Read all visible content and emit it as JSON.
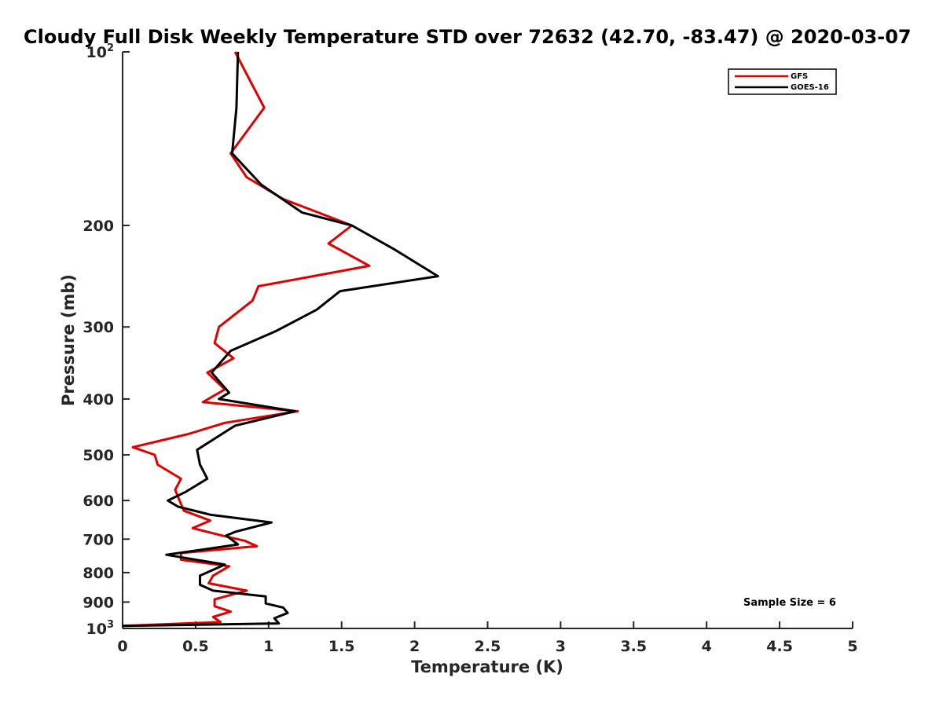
{
  "chart_data": {
    "type": "line",
    "title": "Cloudy Full Disk Weekly Temperature STD over 72632 (42.70, -83.47) @ 2020-03-07",
    "xlabel": "Temperature (K)",
    "ylabel": "Pressure (mb)",
    "xlim": [
      0,
      5
    ],
    "ylim": [
      100,
      1000
    ],
    "y_scale": "log",
    "y_reversed": true,
    "x_ticks": [
      "0",
      "0.5",
      "1",
      "1.5",
      "2",
      "2.5",
      "3",
      "3.5",
      "4",
      "4.5",
      "5"
    ],
    "y_ticks": [
      {
        "value": 100,
        "base": "10",
        "exp": "2"
      },
      {
        "value": 200,
        "label": "200"
      },
      {
        "value": 300,
        "label": "300"
      },
      {
        "value": 400,
        "label": "400"
      },
      {
        "value": 500,
        "label": "500"
      },
      {
        "value": 600,
        "label": "600"
      },
      {
        "value": 700,
        "label": "700"
      },
      {
        "value": 800,
        "label": "800"
      },
      {
        "value": 900,
        "label": "900"
      },
      {
        "value": 1000,
        "base": "10",
        "exp": "3"
      }
    ],
    "grid": false,
    "legend_position": "top-right",
    "annotation": "Sample Size = 6",
    "series": [
      {
        "name": "GFS",
        "color": "#e00000",
        "points": [
          [
            0.77,
            100
          ],
          [
            0.97,
            125
          ],
          [
            0.74,
            150
          ],
          [
            0.85,
            165
          ],
          [
            1.1,
            180
          ],
          [
            1.57,
            200
          ],
          [
            1.41,
            215
          ],
          [
            1.69,
            235
          ],
          [
            0.93,
            255
          ],
          [
            0.89,
            270
          ],
          [
            0.66,
            300
          ],
          [
            0.63,
            320
          ],
          [
            0.76,
            340
          ],
          [
            0.58,
            360
          ],
          [
            0.7,
            385
          ],
          [
            0.55,
            405
          ],
          [
            1.2,
            420
          ],
          [
            0.7,
            440
          ],
          [
            0.45,
            460
          ],
          [
            0.07,
            485
          ],
          [
            0.22,
            500
          ],
          [
            0.24,
            520
          ],
          [
            0.4,
            550
          ],
          [
            0.36,
            575
          ],
          [
            0.39,
            600
          ],
          [
            0.42,
            625
          ],
          [
            0.6,
            650
          ],
          [
            0.48,
            670
          ],
          [
            0.68,
            690
          ],
          [
            0.84,
            705
          ],
          [
            0.92,
            720
          ],
          [
            0.4,
            740
          ],
          [
            0.4,
            760
          ],
          [
            0.73,
            780
          ],
          [
            0.62,
            810
          ],
          [
            0.59,
            835
          ],
          [
            0.85,
            860
          ],
          [
            0.63,
            890
          ],
          [
            0.63,
            915
          ],
          [
            0.74,
            935
          ],
          [
            0.62,
            955
          ],
          [
            0.67,
            975
          ],
          [
            0.0,
            990
          ]
        ]
      },
      {
        "name": "GOES-16",
        "color": "#000000",
        "points": [
          [
            0.79,
            100
          ],
          [
            0.78,
            125
          ],
          [
            0.75,
            150
          ],
          [
            0.95,
            170
          ],
          [
            1.23,
            190
          ],
          [
            1.57,
            200
          ],
          [
            1.86,
            220
          ],
          [
            2.16,
            245
          ],
          [
            1.49,
            260
          ],
          [
            1.33,
            280
          ],
          [
            1.05,
            305
          ],
          [
            0.74,
            330
          ],
          [
            0.61,
            360
          ],
          [
            0.73,
            390
          ],
          [
            0.66,
            400
          ],
          [
            1.18,
            420
          ],
          [
            0.77,
            445
          ],
          [
            0.51,
            490
          ],
          [
            0.53,
            520
          ],
          [
            0.58,
            550
          ],
          [
            0.43,
            580
          ],
          [
            0.31,
            600
          ],
          [
            0.38,
            615
          ],
          [
            0.6,
            635
          ],
          [
            1.02,
            655
          ],
          [
            0.77,
            680
          ],
          [
            0.71,
            690
          ],
          [
            0.79,
            715
          ],
          [
            0.3,
            745
          ],
          [
            0.7,
            775
          ],
          [
            0.53,
            810
          ],
          [
            0.53,
            840
          ],
          [
            0.62,
            860
          ],
          [
            0.98,
            880
          ],
          [
            0.98,
            905
          ],
          [
            1.1,
            920
          ],
          [
            1.13,
            940
          ],
          [
            1.04,
            960
          ],
          [
            1.07,
            980
          ],
          [
            0.0,
            990
          ]
        ]
      }
    ]
  }
}
